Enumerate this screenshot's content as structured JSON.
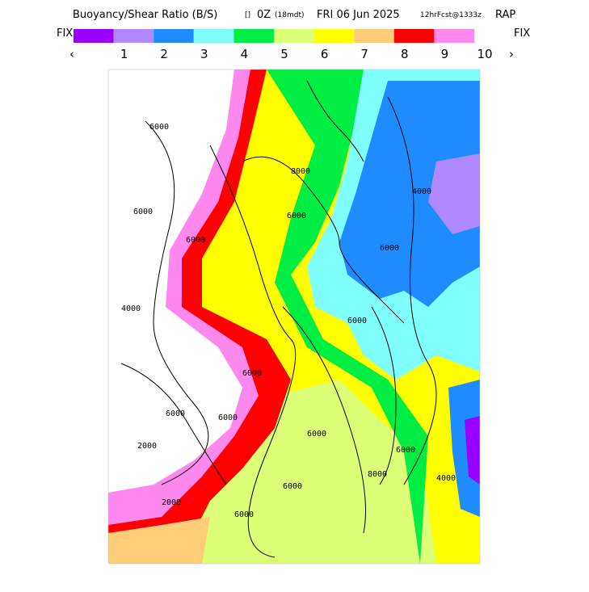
{
  "header": {
    "title": "Buoyancy/Shear Ratio (B/S)",
    "marker": "[]",
    "time": "0Z",
    "local": "(18mdt)",
    "date": "FRI 06 Jun 2025",
    "forecast": "12hrFcst@1333z",
    "model": "RAP"
  },
  "legend": {
    "left": "FIX",
    "right": "FIX",
    "prev": "‹",
    "next": "›",
    "colors": [
      "#9900ff",
      "#b089ff",
      "#1e8cff",
      "#80ffff",
      "#00ee44",
      "#ddff77",
      "#ffff00",
      "#ffcc77",
      "#ff0000",
      "#ff88ee"
    ],
    "labels": [
      "1",
      "2",
      "3",
      "4",
      "5",
      "6",
      "7",
      "8",
      "9",
      "10"
    ]
  },
  "map": {
    "contour_labels": [
      "6000",
      "6000",
      "6000",
      "4000",
      "6000",
      "8000",
      "6000",
      "4000",
      "6000",
      "6000",
      "6000",
      "6000",
      "6000",
      "2000",
      "2000",
      "6000",
      "6000",
      "8000",
      "4000",
      "6000"
    ]
  }
}
